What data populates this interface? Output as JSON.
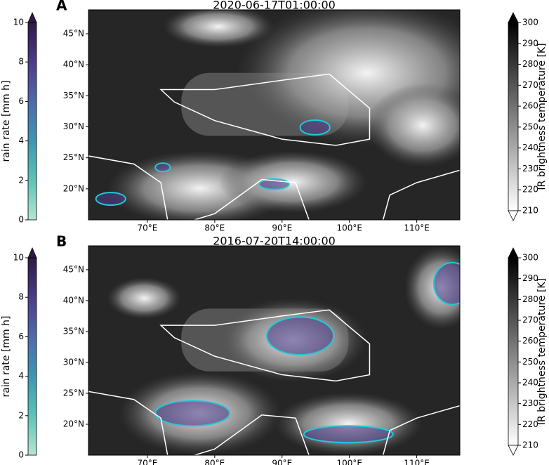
{
  "panels": [
    {
      "label": "A",
      "title": "2020-06-17T01:00:00"
    },
    {
      "label": "B",
      "title": "2016-07-20T14:00:00"
    }
  ],
  "rain_colorbar": {
    "label": "rain rate [mm h]",
    "lim": [
      0,
      10
    ],
    "ticks": [
      0,
      2,
      4,
      6,
      8,
      10
    ]
  },
  "ir_colorbar": {
    "label": "IR brightness temperature [K]",
    "lim": [
      210,
      300
    ],
    "ticks": [
      210,
      220,
      230,
      240,
      250,
      260,
      270,
      280,
      290,
      300
    ]
  },
  "lonlim": [
    61.25,
    116.4
  ],
  "latlim": [
    15.0,
    48.85
  ],
  "lon_ticks": [
    {
      "value": 70,
      "label": "70°E"
    },
    {
      "value": 80,
      "label": "80°E"
    },
    {
      "value": 90,
      "label": "90°E"
    },
    {
      "value": 100,
      "label": "100°E"
    },
    {
      "value": 110,
      "label": "110°E"
    }
  ],
  "lat_ticks": [
    {
      "value": 20,
      "label": "20°N"
    },
    {
      "value": 25,
      "label": "25°N"
    },
    {
      "value": 30,
      "label": "30°N"
    },
    {
      "value": 35,
      "label": "35°N"
    },
    {
      "value": 40,
      "label": "40°N"
    },
    {
      "value": 45,
      "label": "45°N"
    }
  ]
}
